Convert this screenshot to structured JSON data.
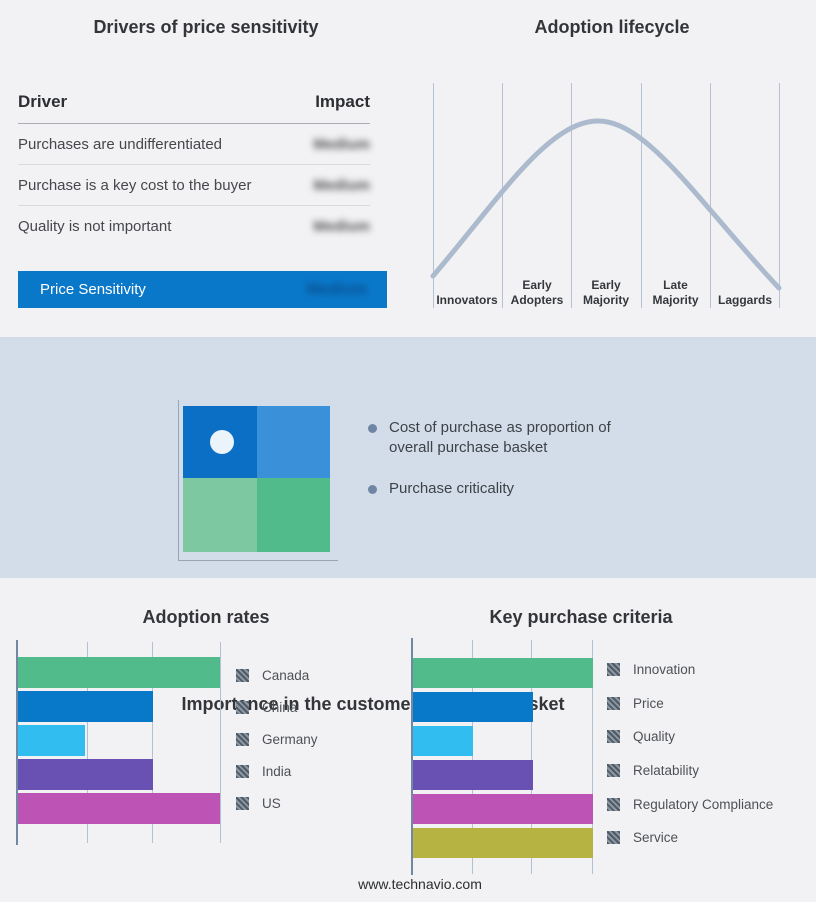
{
  "page": {
    "footer": "www.technavio.com"
  },
  "colors": {
    "page_bg": "#f2f2f4",
    "band_bg": "#d3dde9",
    "accent_blue": "#0a78c9",
    "curve": "#abbacd",
    "quad_top_left": "#0b70c5",
    "quad_top_right": "#3a90d9",
    "quad_bottom_left": "#7dc7a1",
    "quad_bottom_right": "#52bb8c"
  },
  "drivers_panel": {
    "title": "Drivers of price sensitivity",
    "col_driver": "Driver",
    "col_impact": "Impact",
    "rows": [
      {
        "driver": "Purchases are undifferentiated",
        "impact": "Medium"
      },
      {
        "driver": "Purchase is a key cost to the buyer",
        "impact": "Medium"
      },
      {
        "driver": "Quality is not important",
        "impact": "Medium"
      }
    ],
    "summary": {
      "label": "Price Sensitivity",
      "impact": "Medium"
    }
  },
  "lifecycle": {
    "title": "Adoption lifecycle",
    "stages": [
      "Innovators",
      "Early Adopters",
      "Early Majority",
      "Late Majority",
      "Laggards"
    ]
  },
  "basket": {
    "title": "Importance in the customer purchase basket",
    "bullets": [
      "Cost of purchase as proportion of overall purchase basket",
      "Purchase criticality"
    ]
  },
  "chart_data": [
    {
      "type": "bar",
      "orientation": "horizontal",
      "title": "Adoption rates",
      "categories": [
        "Canada",
        "China",
        "Germany",
        "India",
        "US"
      ],
      "values": [
        3,
        2,
        1,
        2,
        3
      ],
      "max": 3,
      "xlim": [
        0,
        3
      ],
      "value_note": "relative units read from unlabeled gridlines",
      "colors": [
        "#52bb8c",
        "#0878c8",
        "#32bdf1",
        "#6951b3",
        "#bc53b5"
      ],
      "grid": true,
      "legend_position": "right"
    },
    {
      "type": "bar",
      "orientation": "horizontal",
      "title": "Key purchase criteria",
      "categories": [
        "Innovation",
        "Price",
        "Quality",
        "Relatability",
        "Regulatory Compliance",
        "Service"
      ],
      "values": [
        3,
        2,
        1,
        2,
        3,
        3
      ],
      "max": 3,
      "xlim": [
        0,
        3
      ],
      "value_note": "relative units read from unlabeled gridlines",
      "colors": [
        "#52bb8c",
        "#0878c8",
        "#32bdf1",
        "#6951b3",
        "#bc53b5",
        "#b6b342"
      ],
      "grid": true,
      "legend_position": "right"
    },
    {
      "type": "line",
      "title": "Adoption lifecycle",
      "x_categories": [
        "Innovators",
        "Early Adopters",
        "Early Majority",
        "Late Majority",
        "Laggards"
      ],
      "description": "Bell curve rising from Innovators, peaking over Early Majority, falling to Laggards",
      "grid": true
    }
  ]
}
